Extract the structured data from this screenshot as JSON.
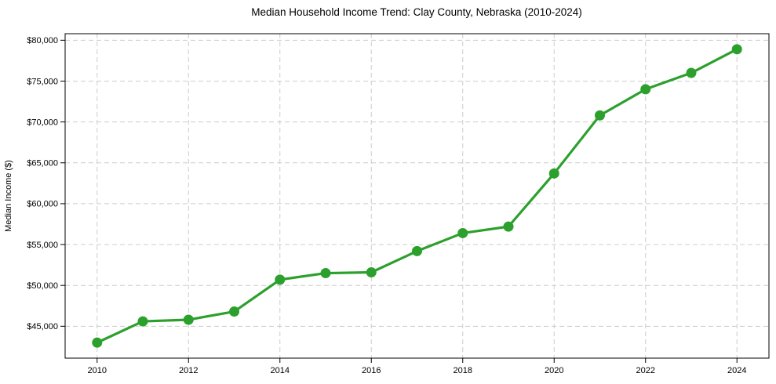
{
  "page": {
    "title": "Median Household Income Trend: Clay County, Nebraska (2010-2024)"
  },
  "chart_data": {
    "type": "line",
    "title": "Median Household Income Trend: Clay County, Nebraska (2010-2024)",
    "xlabel": "",
    "ylabel": "Median Income ($)",
    "x": [
      2010,
      2011,
      2012,
      2013,
      2014,
      2015,
      2016,
      2017,
      2018,
      2019,
      2020,
      2021,
      2022,
      2023,
      2024
    ],
    "series": [
      {
        "name": "Median household income",
        "values": [
          43000,
          45600,
          45800,
          46800,
          50700,
          51500,
          51600,
          54200,
          56400,
          57200,
          63700,
          70800,
          74000,
          76000,
          78900
        ],
        "color": "#2ca02c",
        "marker": "circle",
        "line_width": 3.2,
        "marker_radius": 6.5
      }
    ],
    "xlim": [
      2009.3,
      2024.7
    ],
    "ylim": [
      41100,
      80800
    ],
    "xticks": {
      "values": [
        2010,
        2012,
        2014,
        2016,
        2018,
        2020,
        2022,
        2024
      ],
      "labels": [
        "2010",
        "2012",
        "2014",
        "2016",
        "2018",
        "2020",
        "2022",
        "2024"
      ]
    },
    "yticks": {
      "values": [
        45000,
        50000,
        55000,
        60000,
        65000,
        70000,
        75000,
        80000
      ],
      "labels": [
        "$45,000",
        "$50,000",
        "$55,000",
        "$60,000",
        "$65,000",
        "$70,000",
        "$75,000",
        "$80,000"
      ]
    },
    "grid": {
      "visible": true,
      "style": "dashed",
      "color": "#cccccc"
    },
    "legend": "none",
    "colors": {
      "line": "#2ca02c",
      "grid": "#cccccc",
      "spine": "#000000",
      "text": "#000000",
      "background": "#ffffff"
    }
  }
}
